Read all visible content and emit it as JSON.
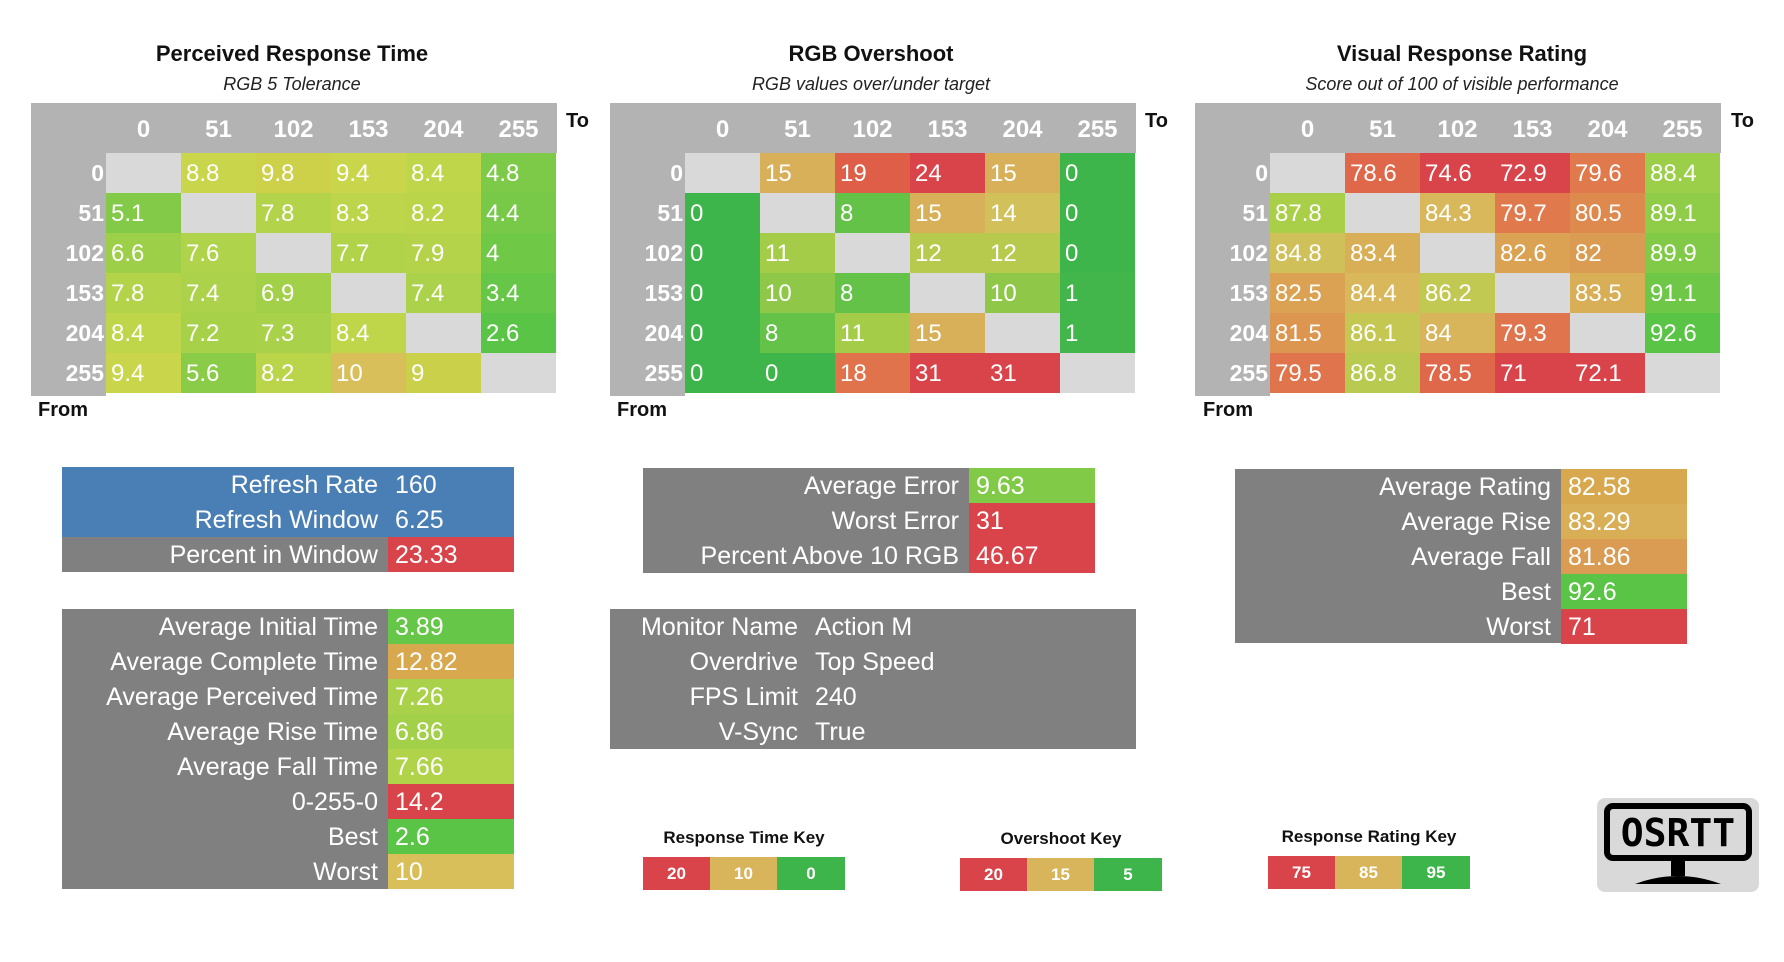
{
  "matrices": [
    {
      "title": "Perceived Response Time",
      "subtitle": "RGB 5 Tolerance",
      "to_label": "To",
      "from_label": "From",
      "headers": [
        "0",
        "51",
        "102",
        "153",
        "204",
        "255"
      ],
      "rows": [
        {
          "label": "0",
          "cells": [
            {
              "v": "",
              "c": "#d9d9d9"
            },
            {
              "v": "8.8",
              "c": "#c9d54a"
            },
            {
              "v": "9.8",
              "c": "#cdd14a"
            },
            {
              "v": "9.4",
              "c": "#c9d54a"
            },
            {
              "v": "8.4",
              "c": "#bfd64a"
            },
            {
              "v": "4.8",
              "c": "#7dca48"
            }
          ]
        },
        {
          "label": "51",
          "cells": [
            {
              "v": "5.1",
              "c": "#82ca48"
            },
            {
              "v": "",
              "c": "#d9d9d9"
            },
            {
              "v": "7.8",
              "c": "#b2d34a"
            },
            {
              "v": "8.3",
              "c": "#bcd54a"
            },
            {
              "v": "8.2",
              "c": "#bbd54a"
            },
            {
              "v": "4.4",
              "c": "#77c947"
            }
          ]
        },
        {
          "label": "102",
          "cells": [
            {
              "v": "6.6",
              "c": "#9dcf49"
            },
            {
              "v": "7.6",
              "c": "#afd34a"
            },
            {
              "v": "",
              "c": "#d9d9d9"
            },
            {
              "v": "7.7",
              "c": "#b1d34a"
            },
            {
              "v": "7.9",
              "c": "#b5d34a"
            },
            {
              "v": "4",
              "c": "#70c847"
            }
          ]
        },
        {
          "label": "153",
          "cells": [
            {
              "v": "7.8",
              "c": "#b2d34a"
            },
            {
              "v": "7.4",
              "c": "#abd24a"
            },
            {
              "v": "6.9",
              "c": "#a3d049"
            },
            {
              "v": "",
              "c": "#d9d9d9"
            },
            {
              "v": "7.4",
              "c": "#abd24a"
            },
            {
              "v": "3.4",
              "c": "#66c647"
            }
          ]
        },
        {
          "label": "204",
          "cells": [
            {
              "v": "8.4",
              "c": "#bfd64a"
            },
            {
              "v": "7.2",
              "c": "#a7d149"
            },
            {
              "v": "7.3",
              "c": "#a9d149"
            },
            {
              "v": "8.4",
              "c": "#bfd64a"
            },
            {
              "v": "",
              "c": "#d9d9d9"
            },
            {
              "v": "2.6",
              "c": "#5ac446"
            }
          ]
        },
        {
          "label": "255",
          "cells": [
            {
              "v": "9.4",
              "c": "#c9d54a"
            },
            {
              "v": "5.6",
              "c": "#8acc48"
            },
            {
              "v": "8.2",
              "c": "#bbd54a"
            },
            {
              "v": "10",
              "c": "#d8bf5a"
            },
            {
              "v": "9",
              "c": "#cbd04a"
            },
            {
              "v": "",
              "c": "#d9d9d9"
            }
          ]
        }
      ]
    },
    {
      "title": "RGB Overshoot",
      "subtitle": "RGB values over/under target",
      "to_label": "To",
      "from_label": "From",
      "headers": [
        "0",
        "51",
        "102",
        "153",
        "204",
        "255"
      ],
      "rows": [
        {
          "label": "0",
          "cells": [
            {
              "v": "",
              "c": "#d9d9d9"
            },
            {
              "v": "15",
              "c": "#d9b05a"
            },
            {
              "v": "19",
              "c": "#de5e48"
            },
            {
              "v": "24",
              "c": "#d9444a"
            },
            {
              "v": "15",
              "c": "#d9b05a"
            },
            {
              "v": "0",
              "c": "#3eb54a"
            }
          ]
        },
        {
          "label": "51",
          "cells": [
            {
              "v": "0",
              "c": "#3eb54a"
            },
            {
              "v": "",
              "c": "#d9d9d9"
            },
            {
              "v": "8",
              "c": "#63c247"
            },
            {
              "v": "15",
              "c": "#d9b05a"
            },
            {
              "v": "14",
              "c": "#d2c05a"
            },
            {
              "v": "0",
              "c": "#3eb54a"
            }
          ]
        },
        {
          "label": "102",
          "cells": [
            {
              "v": "0",
              "c": "#3eb54a"
            },
            {
              "v": "11",
              "c": "#a4cc49"
            },
            {
              "v": "",
              "c": "#d9d9d9"
            },
            {
              "v": "12",
              "c": "#b8ca4e"
            },
            {
              "v": "12",
              "c": "#b8ca4e"
            },
            {
              "v": "0",
              "c": "#3eb54a"
            }
          ]
        },
        {
          "label": "153",
          "cells": [
            {
              "v": "0",
              "c": "#3eb54a"
            },
            {
              "v": "10",
              "c": "#8fc748"
            },
            {
              "v": "8",
              "c": "#63c247"
            },
            {
              "v": "",
              "c": "#d9d9d9"
            },
            {
              "v": "10",
              "c": "#8fc748"
            },
            {
              "v": "1",
              "c": "#42b64a"
            }
          ]
        },
        {
          "label": "204",
          "cells": [
            {
              "v": "0",
              "c": "#3eb54a"
            },
            {
              "v": "8",
              "c": "#63c247"
            },
            {
              "v": "11",
              "c": "#a4cc49"
            },
            {
              "v": "15",
              "c": "#d9b05a"
            },
            {
              "v": "",
              "c": "#d9d9d9"
            },
            {
              "v": "1",
              "c": "#42b64a"
            }
          ]
        },
        {
          "label": "255",
          "cells": [
            {
              "v": "0",
              "c": "#3eb54a"
            },
            {
              "v": "0",
              "c": "#3eb54a"
            },
            {
              "v": "18",
              "c": "#e0724c"
            },
            {
              "v": "31",
              "c": "#d9444a"
            },
            {
              "v": "31",
              "c": "#d9444a"
            },
            {
              "v": "",
              "c": "#d9d9d9"
            }
          ]
        }
      ]
    },
    {
      "title": "Visual Response Rating",
      "subtitle": "Score out of 100 of visible performance",
      "to_label": "To",
      "from_label": "From",
      "headers": [
        "0",
        "51",
        "102",
        "153",
        "204",
        "255"
      ],
      "rows": [
        {
          "label": "0",
          "cells": [
            {
              "v": "",
              "c": "#d9d9d9"
            },
            {
              "v": "78.6",
              "c": "#e0684a"
            },
            {
              "v": "74.6",
              "c": "#d9444a"
            },
            {
              "v": "72.9",
              "c": "#d9444a"
            },
            {
              "v": "79.6",
              "c": "#e07a4c"
            },
            {
              "v": "88.4",
              "c": "#9ccf49"
            }
          ]
        },
        {
          "label": "51",
          "cells": [
            {
              "v": "87.8",
              "c": "#a9cf49"
            },
            {
              "v": "",
              "c": "#d9d9d9"
            },
            {
              "v": "84.3",
              "c": "#d8b85a"
            },
            {
              "v": "79.7",
              "c": "#e07a4c"
            },
            {
              "v": "80.5",
              "c": "#de8a4e"
            },
            {
              "v": "89.1",
              "c": "#8fcc48"
            }
          ]
        },
        {
          "label": "102",
          "cells": [
            {
              "v": "84.8",
              "c": "#d0c05a"
            },
            {
              "v": "83.4",
              "c": "#d8ae56"
            },
            {
              "v": "",
              "c": "#d9d9d9"
            },
            {
              "v": "82.6",
              "c": "#daa252"
            },
            {
              "v": "82",
              "c": "#da9c52"
            },
            {
              "v": "89.9",
              "c": "#80ca48"
            }
          ]
        },
        {
          "label": "153",
          "cells": [
            {
              "v": "82.5",
              "c": "#daa252"
            },
            {
              "v": "84.4",
              "c": "#d8b85a"
            },
            {
              "v": "86.2",
              "c": "#c2c952"
            },
            {
              "v": "",
              "c": "#d9d9d9"
            },
            {
              "v": "83.5",
              "c": "#d8ae56"
            },
            {
              "v": "91.1",
              "c": "#6ec747"
            }
          ]
        },
        {
          "label": "204",
          "cells": [
            {
              "v": "81.5",
              "c": "#dc9650"
            },
            {
              "v": "86.1",
              "c": "#c4c852"
            },
            {
              "v": "84",
              "c": "#d8b45a"
            },
            {
              "v": "79.3",
              "c": "#e0744c"
            },
            {
              "v": "",
              "c": "#d9d9d9"
            },
            {
              "v": "92.6",
              "c": "#5ac446"
            }
          ]
        },
        {
          "label": "255",
          "cells": [
            {
              "v": "79.5",
              "c": "#e0744c"
            },
            {
              "v": "86.8",
              "c": "#b8cb50"
            },
            {
              "v": "78.5",
              "c": "#e0684a"
            },
            {
              "v": "71",
              "c": "#d9444a"
            },
            {
              "v": "72.1",
              "c": "#d9444a"
            },
            {
              "v": "",
              "c": "#d9d9d9"
            }
          ]
        }
      ]
    }
  ],
  "refresh_panel": [
    {
      "label": "Refresh Rate",
      "value": "160",
      "bg": "#4a7fb5",
      "vbg": "#4a7fb5"
    },
    {
      "label": "Refresh Window",
      "value": "6.25",
      "bg": "#4a7fb5",
      "vbg": "#4a7fb5"
    },
    {
      "label": "Percent in Window",
      "value": "23.33",
      "bg": "#808080",
      "vbg": "#d9444a"
    }
  ],
  "time_panel": [
    {
      "label": "Average Initial Time",
      "value": "3.89",
      "vbg": "#66c647"
    },
    {
      "label": "Average Complete Time",
      "value": "12.82",
      "vbg": "#d8a84e"
    },
    {
      "label": "Average Perceived Time",
      "value": "7.26",
      "vbg": "#a9d149"
    },
    {
      "label": "Average Rise Time",
      "value": "6.86",
      "vbg": "#a3d049"
    },
    {
      "label": "Average Fall Time",
      "value": "7.66",
      "vbg": "#b0d34a"
    },
    {
      "label": "0-255-0",
      "value": "14.2",
      "vbg": "#d9444a"
    },
    {
      "label": "Best",
      "value": "2.6",
      "vbg": "#5ac446"
    },
    {
      "label": "Worst",
      "value": "10",
      "vbg": "#d8bf5a"
    }
  ],
  "error_panel": [
    {
      "label": "Average Error",
      "value": "9.63",
      "vbg": "#80ca48"
    },
    {
      "label": "Worst Error",
      "value": "31",
      "vbg": "#d9444a"
    },
    {
      "label": "Percent Above 10 RGB",
      "value": "46.67",
      "vbg": "#d9444a"
    }
  ],
  "monitor_panel": [
    {
      "label": "Monitor Name",
      "value": "Action M"
    },
    {
      "label": "Overdrive",
      "value": "Top Speed"
    },
    {
      "label": "FPS Limit",
      "value": "240"
    },
    {
      "label": "V-Sync",
      "value": "True"
    }
  ],
  "rating_panel": [
    {
      "label": "Average Rating",
      "value": "82.58",
      "vbg": "#d8a84e"
    },
    {
      "label": "Average Rise",
      "value": "83.29",
      "vbg": "#d8ae56"
    },
    {
      "label": "Average Fall",
      "value": "81.86",
      "vbg": "#da9c52"
    },
    {
      "label": "Best",
      "value": "92.6",
      "vbg": "#5ac446"
    },
    {
      "label": "Worst",
      "value": "71",
      "vbg": "#d9444a"
    }
  ],
  "keys": [
    {
      "title": "Response Time Key",
      "cells": [
        {
          "v": "20",
          "c": "#d9444a"
        },
        {
          "v": "10",
          "c": "#d8b45a"
        },
        {
          "v": "0",
          "c": "#3eb54a"
        }
      ]
    },
    {
      "title": "Overshoot Key",
      "cells": [
        {
          "v": "20",
          "c": "#d9444a"
        },
        {
          "v": "15",
          "c": "#d8b45a"
        },
        {
          "v": "5",
          "c": "#3eb54a"
        }
      ]
    },
    {
      "title": "Response Rating Key",
      "cells": [
        {
          "v": "75",
          "c": "#d9444a"
        },
        {
          "v": "85",
          "c": "#d8b45a"
        },
        {
          "v": "95",
          "c": "#3eb54a"
        }
      ]
    }
  ],
  "logo_text": "OSRTT"
}
